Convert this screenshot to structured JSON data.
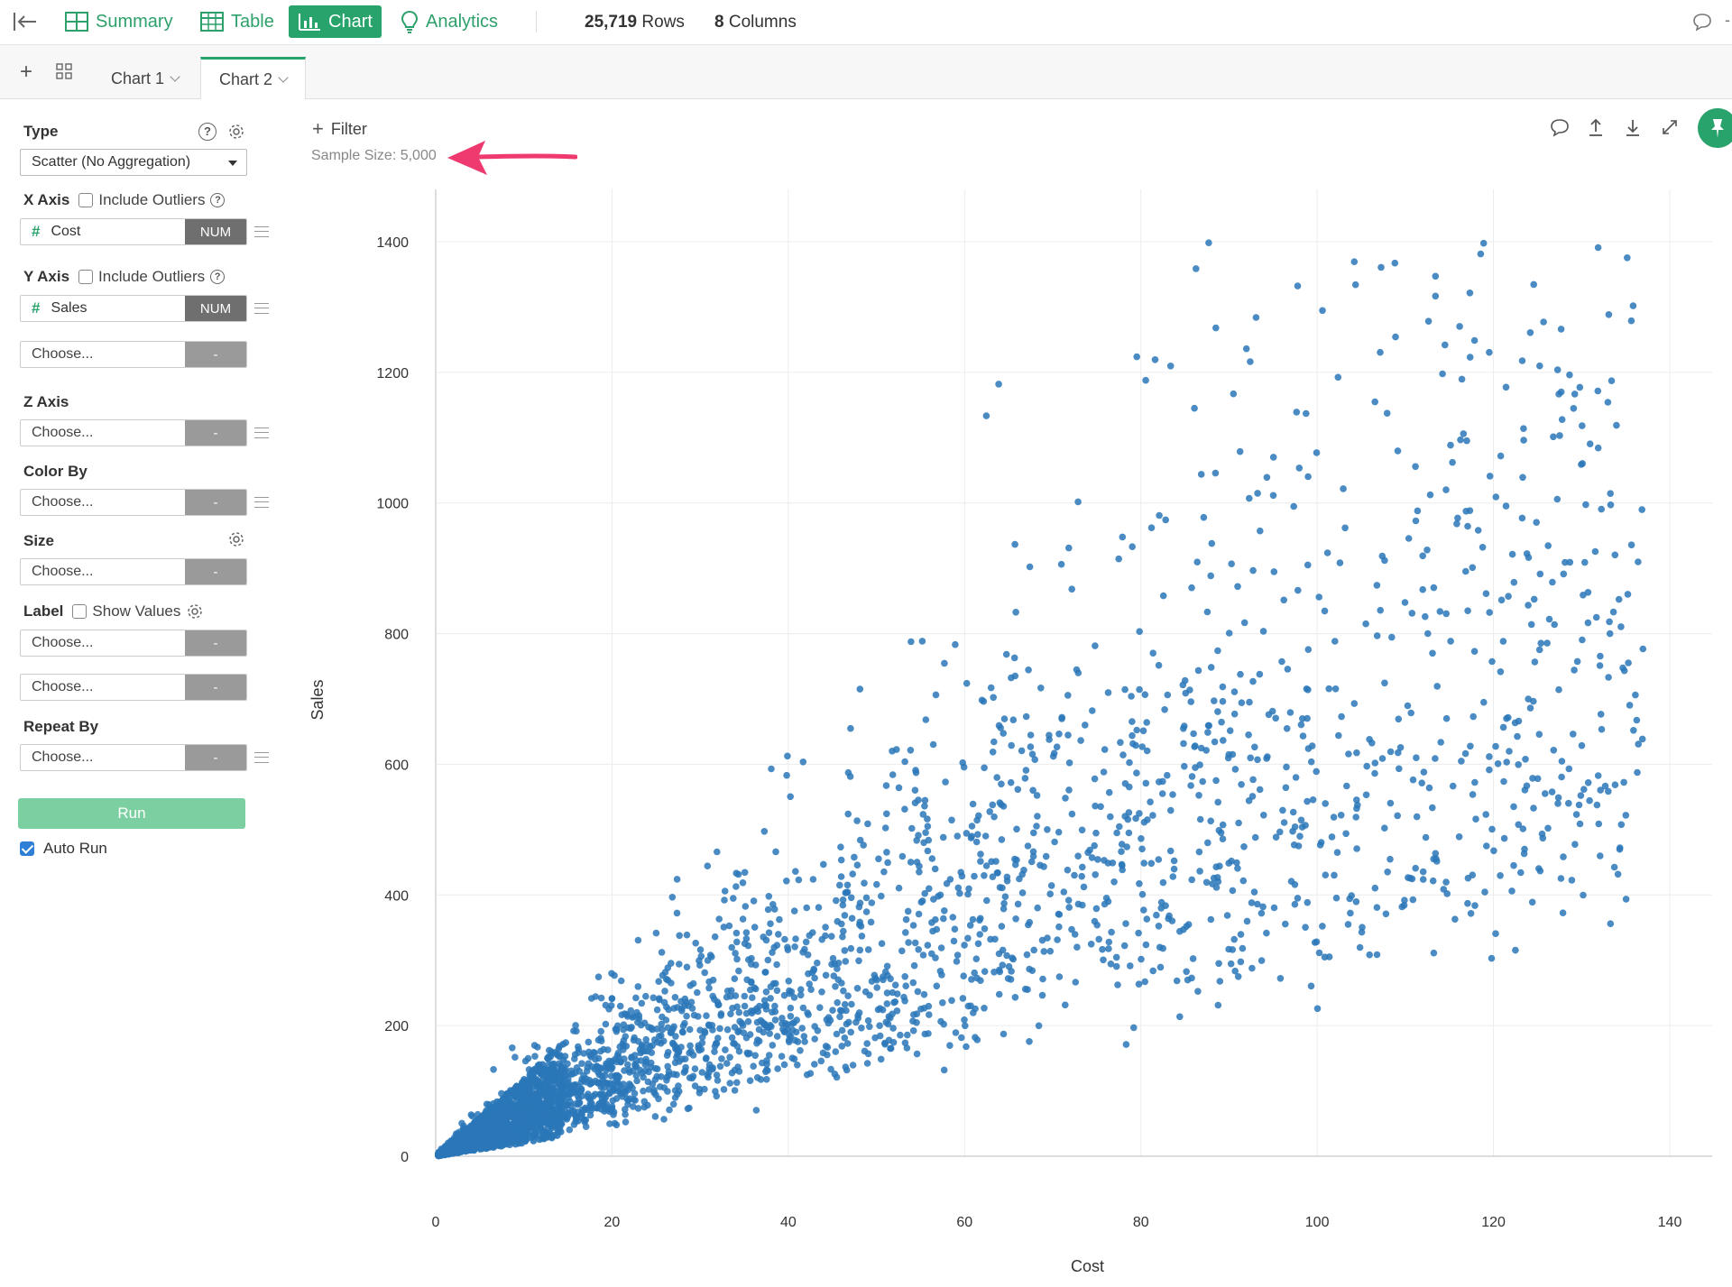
{
  "header": {
    "nav": [
      {
        "label": "Summary",
        "icon": "summary-icon"
      },
      {
        "label": "Table",
        "icon": "table-icon"
      },
      {
        "label": "Chart",
        "icon": "chart-icon",
        "active": true
      },
      {
        "label": "Analytics",
        "icon": "lightbulb-icon"
      }
    ],
    "rows_count": "25,719",
    "rows_label": "Rows",
    "cols_count": "8",
    "cols_label": "Columns"
  },
  "tabs": [
    {
      "label": "Chart 1",
      "active": false
    },
    {
      "label": "Chart 2",
      "active": true
    }
  ],
  "sidebar": {
    "type_label": "Type",
    "type_value": "Scatter (No Aggregation)",
    "x_axis": {
      "label": "X Axis",
      "outliers_label": "Include Outliers",
      "outliers_checked": false,
      "column": "Cost",
      "column_type": "NUM"
    },
    "y_axis": {
      "label": "Y Axis",
      "outliers_label": "Include Outliers",
      "outliers_checked": false,
      "column": "Sales",
      "column_type": "NUM",
      "extra_placeholder": "Choose...",
      "extra_tag": "-"
    },
    "z_axis": {
      "label": "Z Axis",
      "placeholder": "Choose...",
      "tag": "-"
    },
    "color_by": {
      "label": "Color By",
      "placeholder": "Choose...",
      "tag": "-"
    },
    "size": {
      "label": "Size",
      "placeholder": "Choose...",
      "tag": "-"
    },
    "label": {
      "label": "Label",
      "show_values_label": "Show Values",
      "show_values_checked": false,
      "placeholder1": "Choose...",
      "placeholder2": "Choose...",
      "tag": "-"
    },
    "repeat_by": {
      "label": "Repeat By",
      "placeholder": "Choose...",
      "tag": "-"
    },
    "run_label": "Run",
    "auto_run_label": "Auto Run",
    "auto_run_checked": true
  },
  "toolbar": {
    "filter_label": "Filter",
    "sample_size": "Sample Size: 5,000"
  },
  "colors": {
    "accent": "#27a36b",
    "point": "#2a77b8",
    "annotation_arrow": "#ee3a6e"
  },
  "chart_data": {
    "type": "scatter",
    "xlabel": "Cost",
    "ylabel": "Sales",
    "xlim": [
      0,
      145
    ],
    "ylim": [
      0,
      1480
    ],
    "xticks": [
      0,
      20,
      40,
      60,
      80,
      100,
      120,
      140
    ],
    "yticks": [
      0,
      200,
      400,
      600,
      800,
      1000,
      1200,
      1400
    ],
    "grid": true,
    "sample_size": 5000,
    "distribution": {
      "description_points": "dense cluster near origin, fanning out; sales roughly 2x-16x cost",
      "x_range": [
        0,
        137
      ],
      "y_range": [
        0,
        1400
      ]
    }
  }
}
